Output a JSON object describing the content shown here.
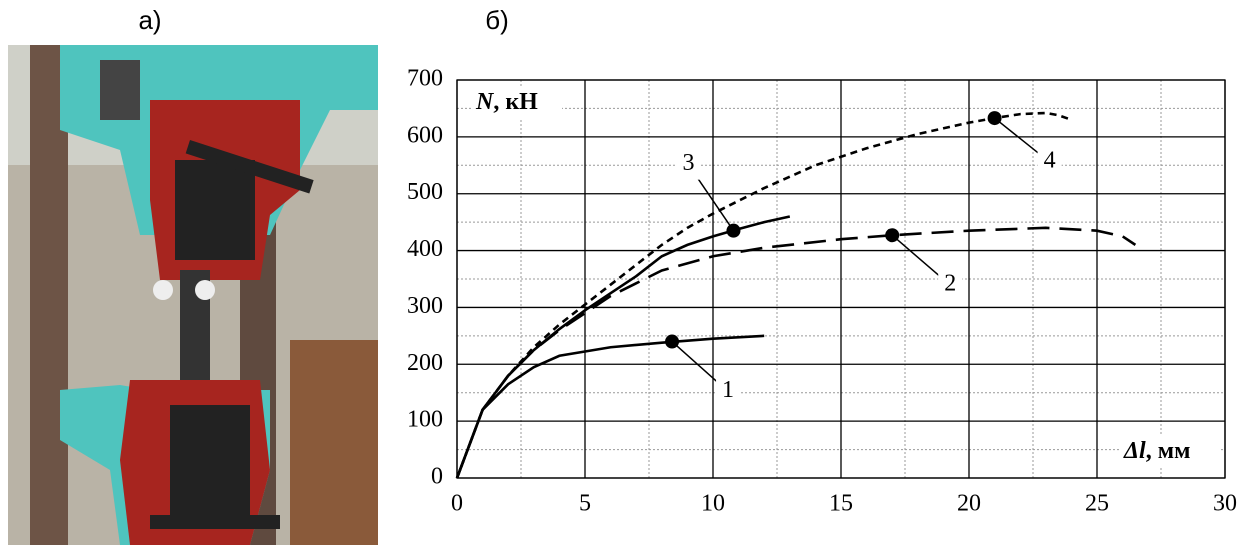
{
  "panel_a_label": "а)",
  "panel_b_label": "б)",
  "chart_data": {
    "type": "line",
    "xlabel": {
      "symbol": "Δl",
      "unit": ", мм"
    },
    "ylabel": {
      "symbol": "N",
      "unit": ", кН"
    },
    "xlim": [
      0,
      30
    ],
    "ylim": [
      0,
      700
    ],
    "xticks": [
      0,
      5,
      10,
      15,
      20,
      25,
      30
    ],
    "yticks": [
      0,
      100,
      200,
      300,
      400,
      500,
      600,
      700
    ],
    "xminor": [
      2.5,
      7.5,
      12.5,
      17.5,
      22.5,
      27.5
    ],
    "yminor": [
      50,
      150,
      250,
      350,
      450,
      550,
      650
    ],
    "grid": true,
    "series": [
      {
        "name": "1",
        "color": "#000000",
        "dash": "solid",
        "x": [
          0,
          0.5,
          1,
          2,
          3,
          4,
          6,
          8,
          10,
          12
        ],
        "values": [
          0,
          60,
          120,
          165,
          195,
          215,
          230,
          238,
          245,
          250
        ],
        "marker": {
          "x": 8.4,
          "y": 240
        }
      },
      {
        "name": "2",
        "color": "#000000",
        "dash": "long",
        "x": [
          0,
          1,
          2,
          3,
          4,
          5,
          6,
          8,
          10,
          12,
          15,
          17,
          20,
          23,
          25,
          26,
          26.5
        ],
        "values": [
          0,
          120,
          180,
          225,
          260,
          290,
          320,
          365,
          390,
          405,
          420,
          427,
          435,
          440,
          435,
          425,
          410
        ],
        "marker": {
          "x": 17,
          "y": 427
        }
      },
      {
        "name": "3",
        "color": "#000000",
        "dash": "solid",
        "x": [
          0,
          1,
          2,
          3,
          4,
          5,
          6,
          7,
          8,
          9,
          10,
          11,
          12,
          13
        ],
        "values": [
          0,
          120,
          180,
          225,
          262,
          295,
          325,
          355,
          390,
          410,
          425,
          438,
          450,
          460
        ],
        "marker": {
          "x": 10.8,
          "y": 435
        }
      },
      {
        "name": "4",
        "color": "#000000",
        "dash": "short",
        "x": [
          0,
          1,
          2,
          3,
          4,
          5,
          6,
          7,
          8,
          9,
          10,
          12,
          14,
          16,
          18,
          20,
          21,
          22,
          23,
          23.5,
          24
        ],
        "values": [
          0,
          120,
          180,
          230,
          270,
          305,
          340,
          375,
          410,
          440,
          465,
          510,
          550,
          580,
          605,
          625,
          633,
          640,
          642,
          638,
          630
        ],
        "marker": {
          "x": 21,
          "y": 633
        }
      }
    ]
  }
}
